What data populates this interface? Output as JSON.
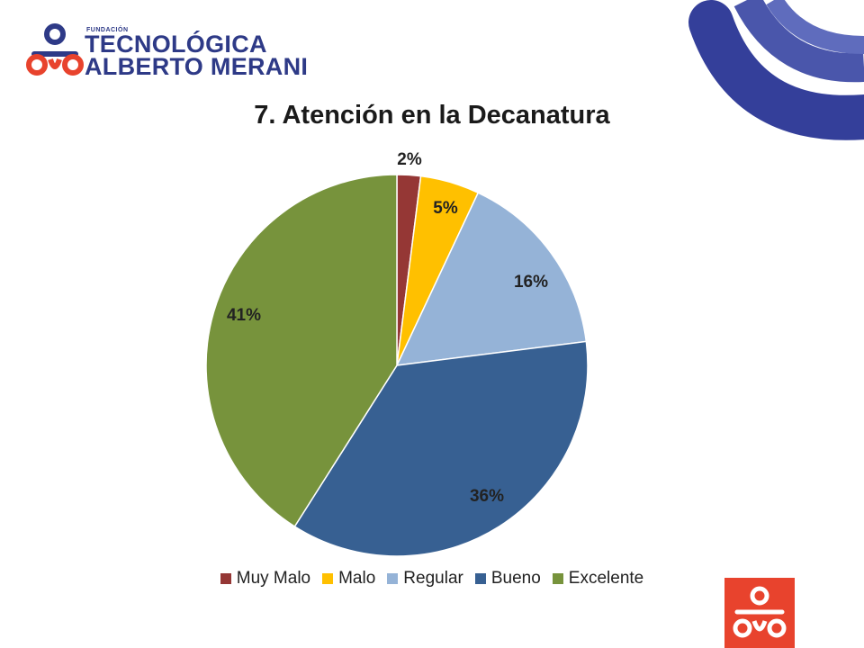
{
  "brand": {
    "small": "FUNDACIÓN",
    "line1": "TECNOLÓGICA",
    "line2": "ALBERTO MERANI",
    "primary_color": "#2e3a87",
    "accent_color": "#e8432d"
  },
  "chart_data": {
    "type": "pie",
    "title": "7. Atención en la Decanatura",
    "categories": [
      "Muy Malo",
      "Malo",
      "Regular",
      "Bueno",
      "Excelente"
    ],
    "values": [
      2,
      5,
      16,
      36,
      41
    ],
    "labels": [
      "2%",
      "5%",
      "16%",
      "36%",
      "41%"
    ],
    "colors": [
      "#953735",
      "#ffc000",
      "#95b3d7",
      "#376092",
      "#77933c"
    ],
    "legend_position": "bottom"
  }
}
